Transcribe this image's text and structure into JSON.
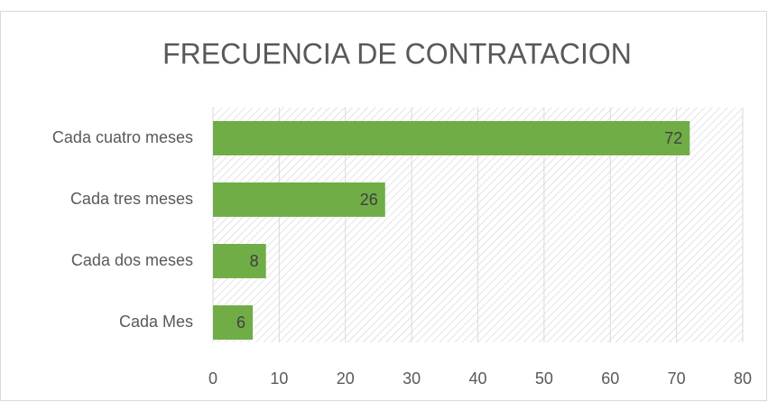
{
  "chart_data": {
    "type": "barh",
    "title": "FRECUENCIA DE CONTRATACION",
    "categories": [
      "Cada cuatro meses",
      "Cada tres meses",
      "Cada dos meses",
      "Cada Mes"
    ],
    "values": [
      72,
      26,
      8,
      6
    ],
    "color": "#70ad47",
    "xlim": [
      0,
      80
    ],
    "xticks": [
      0,
      10,
      20,
      30,
      40,
      50,
      60,
      70,
      80
    ],
    "grid": true
  }
}
